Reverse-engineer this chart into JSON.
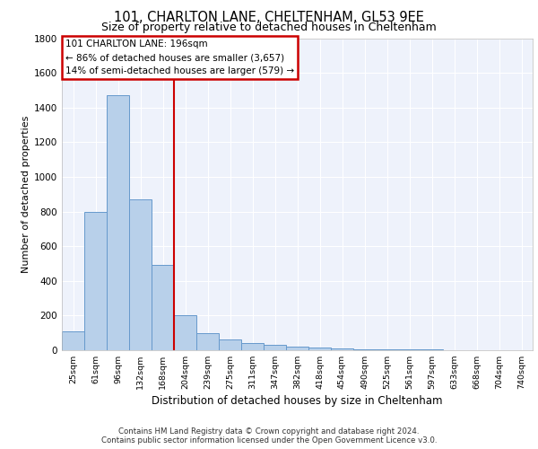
{
  "title1": "101, CHARLTON LANE, CHELTENHAM, GL53 9EE",
  "title2": "Size of property relative to detached houses in Cheltenham",
  "xlabel": "Distribution of detached houses by size in Cheltenham",
  "ylabel": "Number of detached properties",
  "categories": [
    "25sqm",
    "61sqm",
    "96sqm",
    "132sqm",
    "168sqm",
    "204sqm",
    "239sqm",
    "275sqm",
    "311sqm",
    "347sqm",
    "382sqm",
    "418sqm",
    "454sqm",
    "490sqm",
    "525sqm",
    "561sqm",
    "597sqm",
    "633sqm",
    "668sqm",
    "704sqm",
    "740sqm"
  ],
  "values": [
    110,
    800,
    1470,
    870,
    490,
    200,
    100,
    60,
    40,
    30,
    20,
    15,
    10,
    7,
    5,
    4,
    3,
    2,
    1,
    1,
    1
  ],
  "bar_color": "#b8d0ea",
  "bar_edge_color": "#6699cc",
  "vline_color": "#cc0000",
  "annotation_text": "101 CHARLTON LANE: 196sqm\n← 86% of detached houses are smaller (3,657)\n14% of semi-detached houses are larger (579) →",
  "annotation_box_color": "#cc0000",
  "ylim": [
    0,
    1800
  ],
  "yticks": [
    0,
    200,
    400,
    600,
    800,
    1000,
    1200,
    1400,
    1600,
    1800
  ],
  "footnote1": "Contains HM Land Registry data © Crown copyright and database right 2024.",
  "footnote2": "Contains public sector information licensed under the Open Government Licence v3.0.",
  "background_color": "#eef2fb"
}
